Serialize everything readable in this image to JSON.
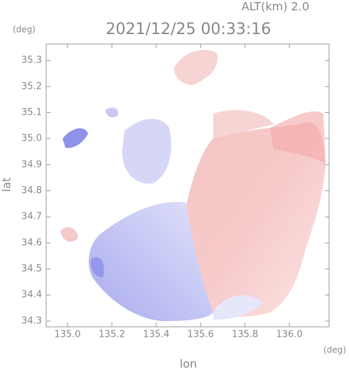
{
  "chart_data": {
    "type": "radar",
    "altitude_label": "ALT(km) 2.0",
    "title": "2021/12/25 00:33:16",
    "xlabel": "lon",
    "ylabel": "lat",
    "xunit": "(deg)",
    "yunit": "(deg)",
    "xlim": [
      134.904,
      136.179
    ],
    "ylim": [
      34.278,
      35.363
    ],
    "xticks": [
      {
        "value": 135,
        "label": "135.0"
      },
      135.2,
      135.4,
      135.6,
      135.8,
      {
        "value": 136,
        "label": "136.0"
      }
    ],
    "yticks": [
      34.3,
      34.4,
      34.5,
      34.6,
      34.7,
      34.8,
      34.9,
      {
        "value": 35,
        "label": "35.0"
      },
      35.1,
      35.2,
      35.3
    ]
  }
}
